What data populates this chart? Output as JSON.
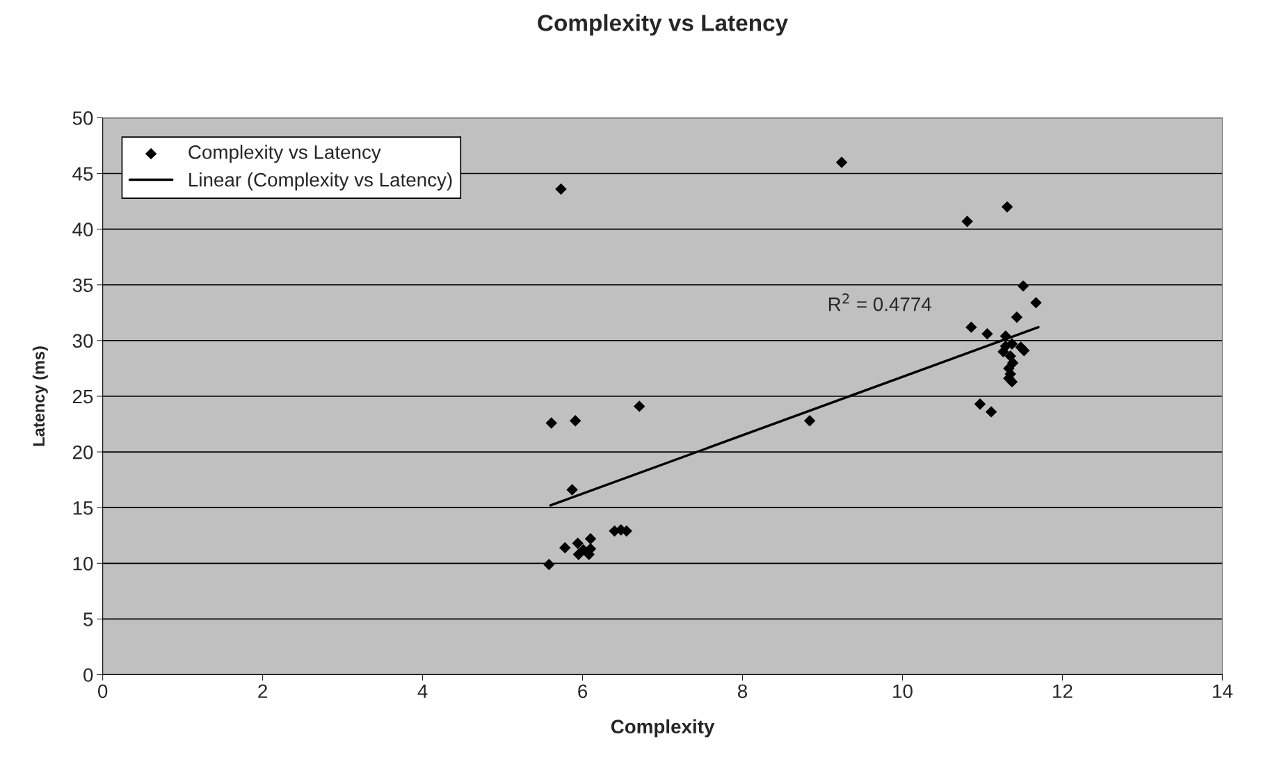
{
  "chart_data": {
    "type": "scatter",
    "title": "Complexity vs Latency",
    "xlabel": "Complexity",
    "ylabel": "Latency (ms)",
    "xlim": [
      0,
      14
    ],
    "xticks": [
      0,
      2,
      4,
      6,
      8,
      10,
      12,
      14
    ],
    "ylim": [
      0,
      50
    ],
    "yticks": [
      0,
      5,
      10,
      15,
      20,
      25,
      30,
      35,
      40,
      45,
      50
    ],
    "grid": "y",
    "legend": "top left",
    "annotations": [
      "R$^{2}$ = 0.4774"
    ],
    "series": [
      {
        "name": "Complexity vs Latency",
        "marker": "diamond",
        "color": "#000000",
        "x": [
          5.73,
          9.24,
          11.31,
          10.81,
          11.51,
          11.67,
          11.43,
          10.86,
          11.06,
          11.29,
          11.29,
          11.37,
          11.48,
          11.52,
          11.26,
          11.35,
          11.38,
          11.33,
          11.35,
          11.33,
          11.37,
          10.97,
          11.11,
          6.71,
          5.61,
          5.91,
          8.84,
          5.87,
          5.78,
          5.94,
          6.1,
          6.4,
          6.48,
          6.55,
          5.95,
          6.08,
          6.01,
          6.1,
          5.58
        ],
        "values": [
          43.6,
          46.0,
          42.0,
          40.7,
          34.9,
          33.4,
          32.1,
          31.2,
          30.6,
          30.4,
          29.5,
          29.7,
          29.4,
          29.1,
          29.0,
          28.6,
          28.0,
          27.5,
          27.0,
          26.6,
          26.3,
          24.3,
          23.6,
          24.1,
          22.6,
          22.8,
          22.8,
          16.6,
          11.4,
          11.8,
          12.2,
          12.9,
          13.0,
          12.9,
          10.8,
          10.8,
          11.2,
          11.3,
          9.9
        ]
      },
      {
        "name": "Linear (Complexity vs Latency)",
        "type": "line",
        "marker": "none",
        "color": "#000000",
        "x": [
          5.6,
          11.7
        ],
        "values": [
          15.2,
          31.2
        ]
      }
    ]
  }
}
